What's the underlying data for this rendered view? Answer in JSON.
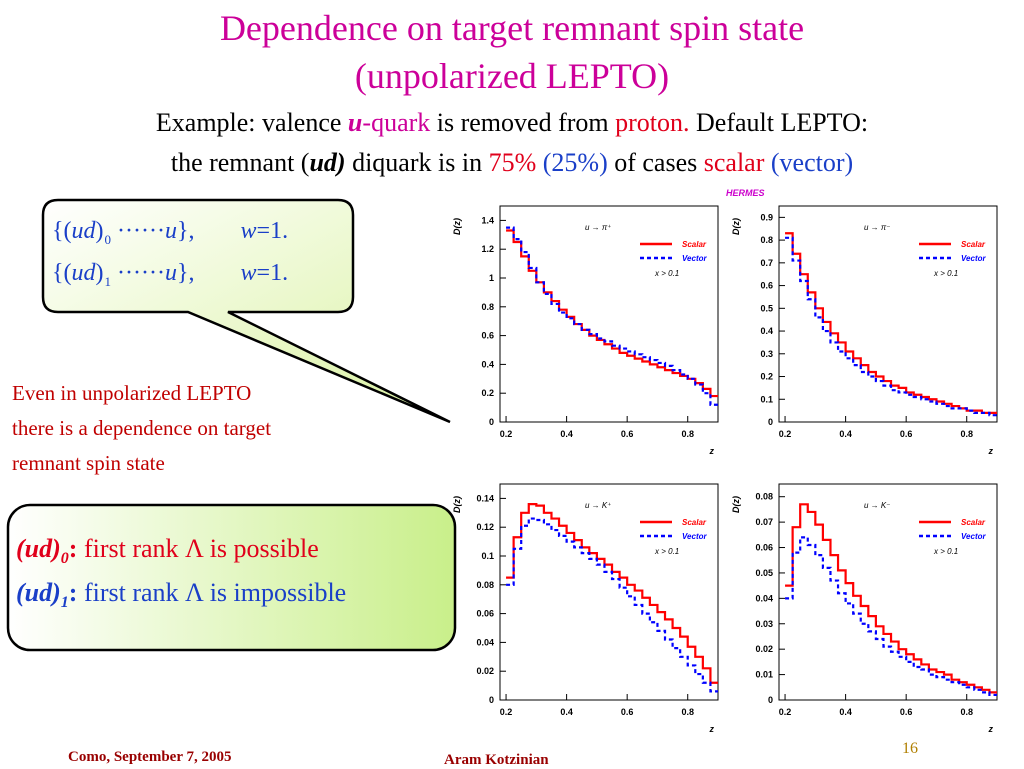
{
  "title": {
    "line1": "Dependence on target remnant spin state",
    "line2": "(unpolarized LEPTO)"
  },
  "subtitle": {
    "l1_part1": "Example: valence",
    "l1_u": "u",
    "l1_dash": "-",
    "l1_quark": "quark",
    "l1_removed": "is removed from",
    "l1_proton": "proton.",
    "l1_default": "Default LEPTO:",
    "l2_part1": "the remnant (",
    "l2_ud": "ud)",
    "l2_diquark": "diquark is in",
    "l2_75": "75%",
    "l2_25": "(25%)",
    "l2_of": "of cases",
    "l2_scalar": "scalar",
    "l2_vector": "(vector)"
  },
  "bubble": {
    "row1": {
      "open": "{(",
      "ud": "ud",
      "close": ")",
      "sub": "0",
      "dots": "······",
      "u": "u",
      "end": "},",
      "w": "w",
      "eq": "=",
      "val": "1."
    },
    "row2": {
      "open": "{(",
      "ud": "ud",
      "close": ")",
      "sub": "1",
      "dots": "······",
      "u": "u",
      "end": "},",
      "w": "w",
      "eq": "=",
      "val": "1."
    }
  },
  "note": {
    "line1": "Even in unpolarized LEPTO",
    "line2": "there is a dependence on target",
    "line3": "remnant spin state"
  },
  "box2": {
    "row1": {
      "ud": "(ud)",
      "sub": "0",
      "colon": ":",
      "text": "first rank Λ is possible"
    },
    "row2": {
      "ud": "(ud)",
      "sub": "1",
      "colon": ":",
      "text": "first rank Λ is impossible"
    }
  },
  "hermes_label": "HERMES",
  "footer": {
    "left": "Como, September 7,  2005",
    "center": "Aram Kotzinian",
    "page": "16"
  },
  "colors": {
    "scalar": "#ff0000",
    "vector": "#0000ff",
    "title": "#cc0099"
  },
  "chart_data": [
    {
      "type": "line",
      "title": "u → π⁺",
      "xlabel": "z",
      "ylabel": "D(z)",
      "xlim": [
        0.18,
        0.9
      ],
      "ylim": [
        0,
        1.5
      ],
      "xticks": [
        0.2,
        0.4,
        0.6,
        0.8
      ],
      "xtick_labels": [
        "0.2",
        "0.4",
        "0.6",
        "0.8"
      ],
      "yticks": [
        0,
        0.2,
        0.4,
        0.6,
        0.8,
        1.0,
        1.2,
        1.4
      ],
      "ytick_labels": [
        "0",
        "0.2",
        "0.4",
        "0.6",
        "0.8",
        "1",
        "1.2",
        "1.4"
      ],
      "cut_label": "x > 0.1",
      "x": [
        0.2,
        0.225,
        0.25,
        0.275,
        0.3,
        0.325,
        0.35,
        0.375,
        0.4,
        0.425,
        0.45,
        0.475,
        0.5,
        0.525,
        0.55,
        0.575,
        0.6,
        0.625,
        0.65,
        0.675,
        0.7,
        0.725,
        0.75,
        0.775,
        0.8,
        0.825,
        0.85,
        0.875
      ],
      "series": [
        {
          "name": "Scalar",
          "values": [
            1.33,
            1.25,
            1.15,
            1.05,
            0.97,
            0.9,
            0.84,
            0.78,
            0.73,
            0.68,
            0.64,
            0.6,
            0.57,
            0.54,
            0.51,
            0.48,
            0.46,
            0.44,
            0.42,
            0.4,
            0.38,
            0.36,
            0.34,
            0.32,
            0.3,
            0.27,
            0.23,
            0.18
          ]
        },
        {
          "name": "Vector",
          "values": [
            1.35,
            1.27,
            1.18,
            1.07,
            0.97,
            0.89,
            0.82,
            0.76,
            0.72,
            0.68,
            0.64,
            0.61,
            0.58,
            0.56,
            0.53,
            0.51,
            0.49,
            0.47,
            0.45,
            0.43,
            0.41,
            0.39,
            0.36,
            0.33,
            0.3,
            0.26,
            0.2,
            0.12
          ]
        }
      ]
    },
    {
      "type": "line",
      "title": "u → π⁻",
      "xlabel": "z",
      "ylabel": "D(z)",
      "xlim": [
        0.18,
        0.9
      ],
      "ylim": [
        0,
        0.95
      ],
      "xticks": [
        0.2,
        0.4,
        0.6,
        0.8
      ],
      "xtick_labels": [
        "0.2",
        "0.4",
        "0.6",
        "0.8"
      ],
      "yticks": [
        0,
        0.1,
        0.2,
        0.3,
        0.4,
        0.5,
        0.6,
        0.7,
        0.8,
        0.9
      ],
      "ytick_labels": [
        "0",
        "0.1",
        "0.2",
        "0.3",
        "0.4",
        "0.5",
        "0.6",
        "0.7",
        "0.8",
        "0.9"
      ],
      "cut_label": "x > 0.1",
      "x": [
        0.2,
        0.225,
        0.25,
        0.275,
        0.3,
        0.325,
        0.35,
        0.375,
        0.4,
        0.425,
        0.45,
        0.475,
        0.5,
        0.525,
        0.55,
        0.575,
        0.6,
        0.625,
        0.65,
        0.675,
        0.7,
        0.725,
        0.75,
        0.775,
        0.8,
        0.825,
        0.85,
        0.875
      ],
      "series": [
        {
          "name": "Scalar",
          "values": [
            0.83,
            0.74,
            0.65,
            0.57,
            0.5,
            0.44,
            0.39,
            0.35,
            0.31,
            0.28,
            0.25,
            0.22,
            0.2,
            0.18,
            0.16,
            0.15,
            0.13,
            0.12,
            0.11,
            0.1,
            0.09,
            0.08,
            0.07,
            0.06,
            0.05,
            0.05,
            0.04,
            0.04
          ]
        },
        {
          "name": "Vector",
          "values": [
            0.81,
            0.71,
            0.62,
            0.54,
            0.46,
            0.4,
            0.35,
            0.31,
            0.28,
            0.25,
            0.22,
            0.2,
            0.18,
            0.16,
            0.14,
            0.13,
            0.12,
            0.11,
            0.1,
            0.09,
            0.08,
            0.07,
            0.06,
            0.06,
            0.05,
            0.04,
            0.04,
            0.03
          ]
        }
      ]
    },
    {
      "type": "line",
      "title": "u → K⁺",
      "xlabel": "z",
      "ylabel": "D(z)",
      "xlim": [
        0.18,
        0.9
      ],
      "ylim": [
        0,
        0.15
      ],
      "xticks": [
        0.2,
        0.4,
        0.6,
        0.8
      ],
      "xtick_labels": [
        "0.2",
        "0.4",
        "0.6",
        "0.8"
      ],
      "yticks": [
        0,
        0.02,
        0.04,
        0.06,
        0.08,
        0.1,
        0.12,
        0.14
      ],
      "ytick_labels": [
        "0",
        "0.02",
        "0.04",
        "0.06",
        "0.08",
        "0.1",
        "0.12",
        "0.14"
      ],
      "cut_label": "x > 0.1",
      "x": [
        0.2,
        0.225,
        0.25,
        0.275,
        0.3,
        0.325,
        0.35,
        0.375,
        0.4,
        0.425,
        0.45,
        0.475,
        0.5,
        0.525,
        0.55,
        0.575,
        0.6,
        0.625,
        0.65,
        0.675,
        0.7,
        0.725,
        0.75,
        0.775,
        0.8,
        0.825,
        0.85,
        0.875
      ],
      "series": [
        {
          "name": "Scalar",
          "values": [
            0.085,
            0.113,
            0.13,
            0.136,
            0.135,
            0.13,
            0.126,
            0.121,
            0.116,
            0.111,
            0.106,
            0.102,
            0.098,
            0.094,
            0.089,
            0.085,
            0.08,
            0.076,
            0.071,
            0.066,
            0.061,
            0.056,
            0.05,
            0.044,
            0.037,
            0.03,
            0.022,
            0.012
          ]
        },
        {
          "name": "Vector",
          "values": [
            0.08,
            0.105,
            0.121,
            0.126,
            0.125,
            0.122,
            0.118,
            0.114,
            0.11,
            0.106,
            0.102,
            0.098,
            0.094,
            0.089,
            0.084,
            0.078,
            0.072,
            0.066,
            0.06,
            0.054,
            0.048,
            0.042,
            0.036,
            0.03,
            0.024,
            0.018,
            0.012,
            0.006
          ]
        }
      ]
    },
    {
      "type": "line",
      "title": "u → K⁻",
      "xlabel": "z",
      "ylabel": "D(z)",
      "xlim": [
        0.18,
        0.9
      ],
      "ylim": [
        0,
        0.085
      ],
      "xticks": [
        0.2,
        0.4,
        0.6,
        0.8
      ],
      "xtick_labels": [
        "0.2",
        "0.4",
        "0.6",
        "0.8"
      ],
      "yticks": [
        0,
        0.01,
        0.02,
        0.03,
        0.04,
        0.05,
        0.06,
        0.07,
        0.08
      ],
      "ytick_labels": [
        "0",
        "0.01",
        "0.02",
        "0.03",
        "0.04",
        "0.05",
        "0.06",
        "0.07",
        "0.08"
      ],
      "cut_label": "x > 0.1",
      "x": [
        0.2,
        0.225,
        0.25,
        0.275,
        0.3,
        0.325,
        0.35,
        0.375,
        0.4,
        0.425,
        0.45,
        0.475,
        0.5,
        0.525,
        0.55,
        0.575,
        0.6,
        0.625,
        0.65,
        0.675,
        0.7,
        0.725,
        0.75,
        0.775,
        0.8,
        0.825,
        0.85,
        0.875
      ],
      "series": [
        {
          "name": "Scalar",
          "values": [
            0.045,
            0.068,
            0.077,
            0.074,
            0.069,
            0.063,
            0.057,
            0.051,
            0.046,
            0.041,
            0.037,
            0.033,
            0.029,
            0.026,
            0.023,
            0.02,
            0.018,
            0.016,
            0.014,
            0.012,
            0.011,
            0.01,
            0.008,
            0.007,
            0.006,
            0.005,
            0.004,
            0.003
          ]
        },
        {
          "name": "Vector",
          "values": [
            0.04,
            0.058,
            0.064,
            0.061,
            0.057,
            0.052,
            0.047,
            0.042,
            0.038,
            0.034,
            0.03,
            0.027,
            0.024,
            0.021,
            0.019,
            0.017,
            0.015,
            0.013,
            0.012,
            0.01,
            0.009,
            0.008,
            0.007,
            0.006,
            0.005,
            0.004,
            0.003,
            0.002
          ]
        }
      ]
    }
  ]
}
